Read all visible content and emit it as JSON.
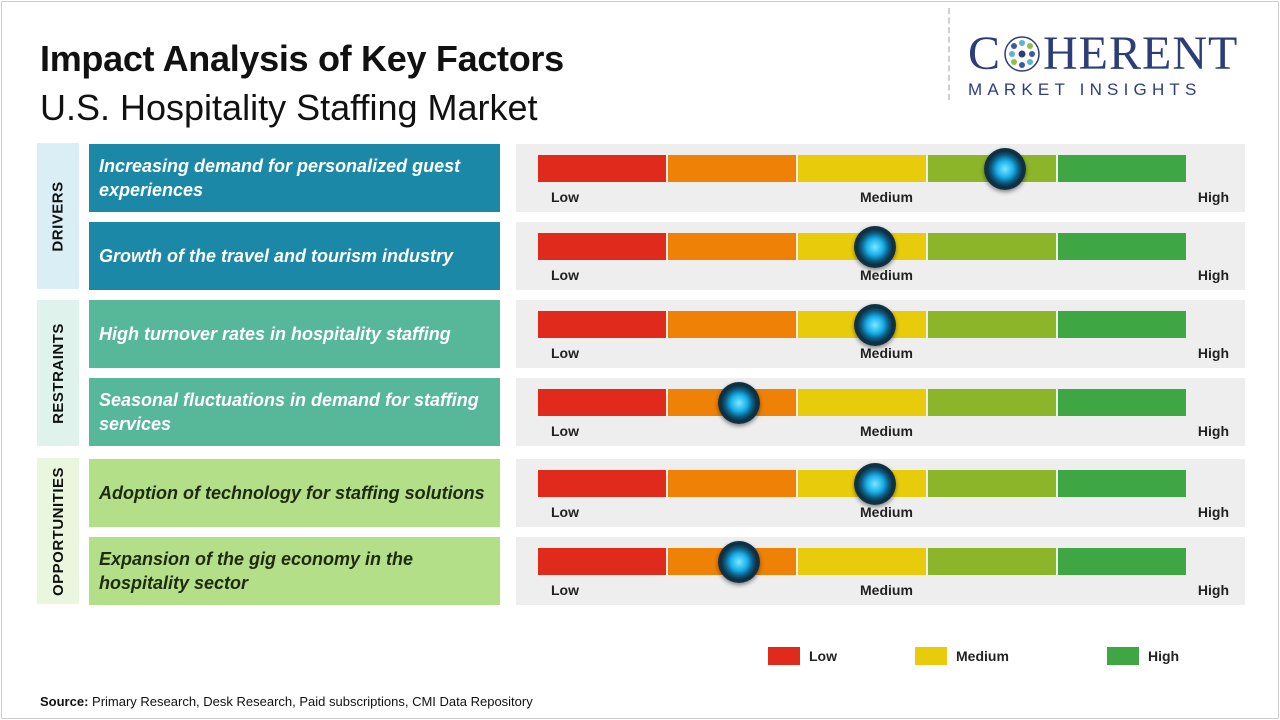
{
  "title": "Impact Analysis of Key Factors",
  "subtitle": "U.S. Hospitality Staffing Market",
  "logo": {
    "main_left": "C",
    "main_right": "HERENT",
    "sub": "MARKET INSIGHTS"
  },
  "colors": {
    "scale": [
      "#e02a1c",
      "#ee8106",
      "#e8cc0b",
      "#8db52a",
      "#3fa644"
    ],
    "low": "#e02a1c",
    "medium": "#e8cc0b",
    "high": "#3fa644",
    "drivers": "#1c88a8",
    "restraints": "#56b799",
    "opportunities": "#b3df88",
    "drivers_label_bg": "#daeef6",
    "restraints_label_bg": "#dff3ec",
    "opportunities_label_bg": "#eaf7df"
  },
  "chart_data": {
    "type": "gauge",
    "scale_labels": [
      "Low",
      "Medium",
      "High"
    ],
    "segments": 5,
    "groups": [
      {
        "name": "DRIVERS",
        "color_key": "drivers",
        "factors": [
          {
            "label": "Increasing demand for personalized guest experiences",
            "impact": 0.72
          },
          {
            "label": "Growth of the travel and tourism industry",
            "impact": 0.52
          }
        ]
      },
      {
        "name": "RESTRAINTS",
        "color_key": "restraints",
        "factors": [
          {
            "label": "High turnover rates in hospitality staffing",
            "impact": 0.52
          },
          {
            "label": "Seasonal fluctuations in demand for staffing services",
            "impact": 0.31
          }
        ]
      },
      {
        "name": "OPPORTUNITIES",
        "color_key": "opportunities",
        "factors": [
          {
            "label": "Adoption of technology for staffing solutions",
            "impact": 0.52
          },
          {
            "label": "Expansion of the gig economy in the hospitality sector",
            "impact": 0.31
          }
        ]
      }
    ],
    "legend": [
      "Low",
      "Medium",
      "High"
    ]
  },
  "source": {
    "label": "Source:",
    "text": " Primary Research, Desk Research, Paid subscriptions, CMI Data Repository"
  }
}
